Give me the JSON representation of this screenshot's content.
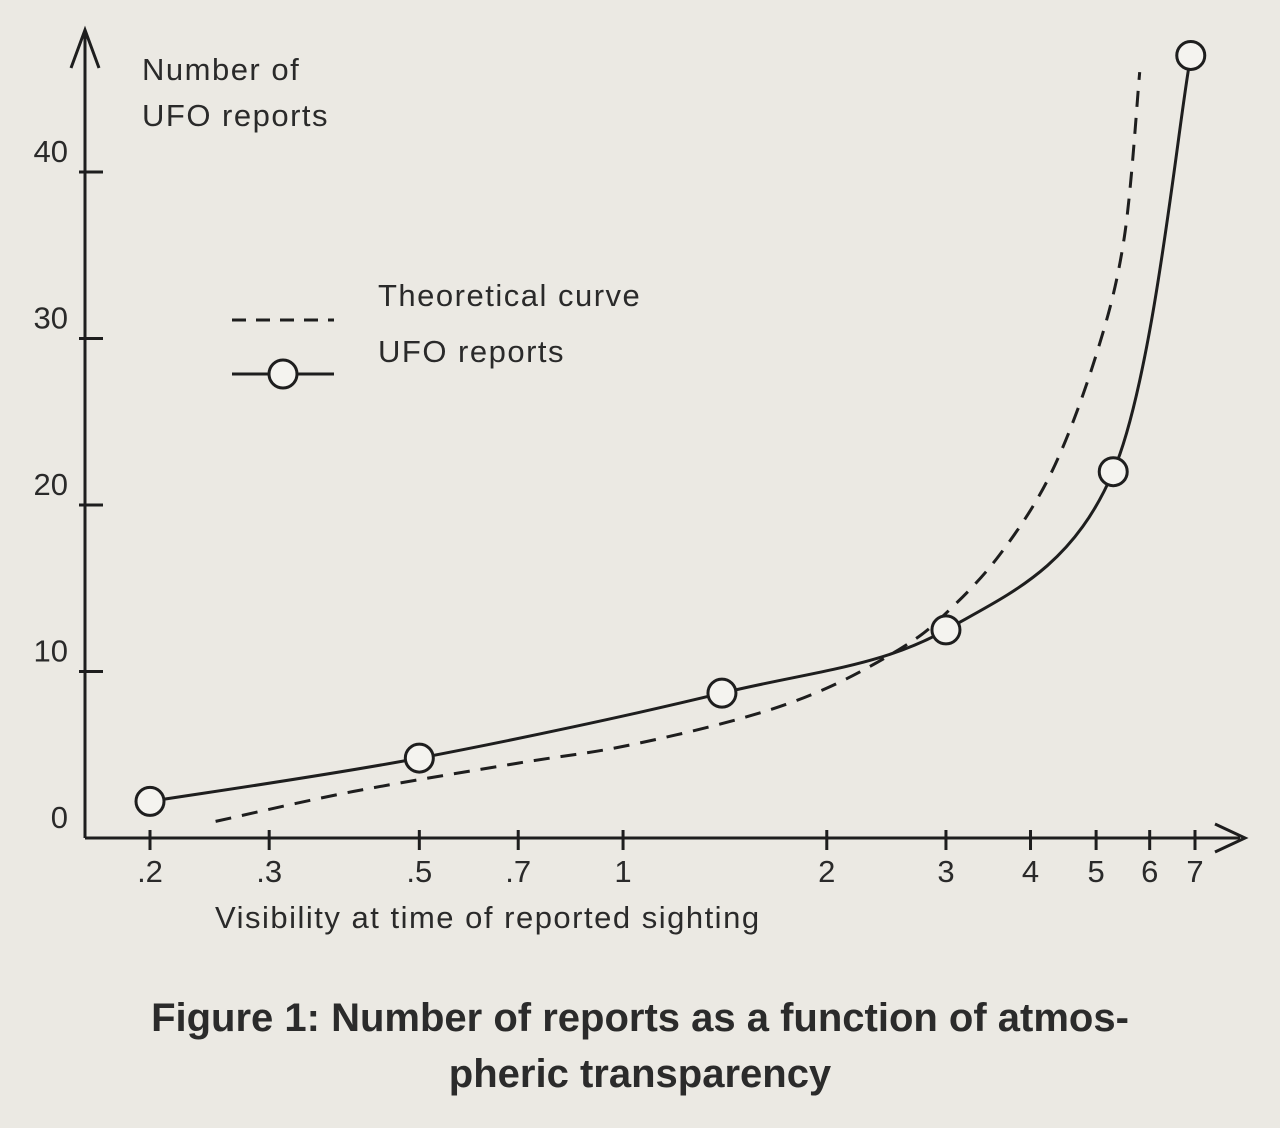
{
  "caption": {
    "line1": "Figure 1: Number of reports as a function of atmos-",
    "line2": "pheric transparency"
  },
  "chart_data": {
    "type": "line",
    "xlabel": "Visibility at time of reported sighting",
    "ylabel": "Number of\nUFO reports",
    "ylabel_lines": [
      "Number of",
      "UFO reports"
    ],
    "x_scale": "log",
    "xlim": [
      0.2,
      7
    ],
    "ylim": [
      0,
      45
    ],
    "x_ticks": [
      {
        "value": 0.2,
        "label": ".2"
      },
      {
        "value": 0.3,
        "label": ".3"
      },
      {
        "value": 0.5,
        "label": ".5"
      },
      {
        "value": 0.7,
        "label": ".7"
      },
      {
        "value": 1,
        "label": "1"
      },
      {
        "value": 2,
        "label": "2"
      },
      {
        "value": 3,
        "label": "3"
      },
      {
        "value": 4,
        "label": "4"
      },
      {
        "value": 5,
        "label": "5"
      },
      {
        "value": 6,
        "label": "6"
      },
      {
        "value": 7,
        "label": "7"
      }
    ],
    "y_ticks": [
      {
        "value": 0,
        "label": "0"
      },
      {
        "value": 10,
        "label": "10"
      },
      {
        "value": 20,
        "label": "20"
      },
      {
        "value": 30,
        "label": "30"
      },
      {
        "value": 40,
        "label": "40"
      }
    ],
    "legend_position": "upper-left",
    "series": [
      {
        "name": "Theoretical curve",
        "style": "dashed",
        "markers": false,
        "x": [
          0.25,
          0.4,
          0.7,
          1.0,
          1.5,
          2.0,
          2.6,
          3.0,
          3.6,
          4.3,
          5.0,
          5.5,
          5.8
        ],
        "y": [
          1.0,
          2.8,
          4.5,
          5.5,
          7.2,
          9.0,
          11.5,
          13.5,
          17.0,
          22.0,
          29.0,
          36.0,
          46.0
        ]
      },
      {
        "name": "UFO reports",
        "style": "solid",
        "markers": true,
        "x": [
          0.2,
          0.5,
          1.4,
          3.0,
          5.3,
          6.9
        ],
        "y": [
          2.2,
          4.8,
          8.7,
          12.5,
          22.0,
          47.0
        ]
      }
    ],
    "grid": false,
    "colors": {
      "line": "#1e1e1e",
      "background": "#ebe9e3"
    }
  }
}
